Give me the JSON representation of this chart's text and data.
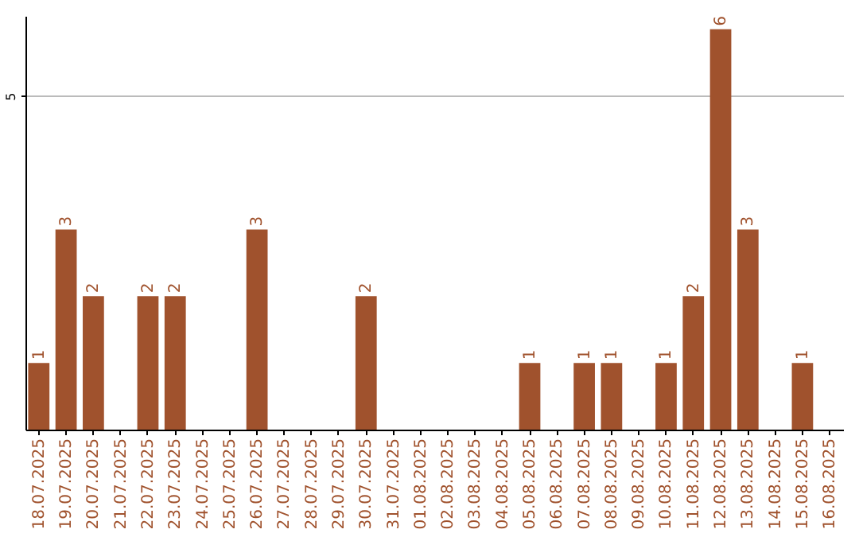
{
  "chart_data": {
    "type": "bar",
    "categories": [
      "18.07.2025",
      "19.07.2025",
      "20.07.2025",
      "21.07.2025",
      "22.07.2025",
      "23.07.2025",
      "24.07.2025",
      "25.07.2025",
      "26.07.2025",
      "27.07.2025",
      "28.07.2025",
      "29.07.2025",
      "30.07.2025",
      "31.07.2025",
      "01.08.2025",
      "02.08.2025",
      "03.08.2025",
      "04.08.2025",
      "05.08.2025",
      "06.08.2025",
      "07.08.2025",
      "08.08.2025",
      "09.08.2025",
      "10.08.2025",
      "11.08.2025",
      "12.08.2025",
      "13.08.2025",
      "14.08.2025",
      "15.08.2025",
      "16.08.2025"
    ],
    "values": [
      1,
      3,
      2,
      0,
      2,
      2,
      0,
      0,
      3,
      0,
      0,
      0,
      2,
      0,
      0,
      0,
      0,
      0,
      1,
      0,
      1,
      1,
      0,
      1,
      2,
      6,
      3,
      0,
      1,
      0
    ],
    "value_labels": [
      "1",
      "3",
      "2",
      null,
      "2",
      "2",
      null,
      null,
      "3",
      null,
      null,
      null,
      "2",
      null,
      null,
      null,
      null,
      null,
      "1",
      null,
      "1",
      "1",
      null,
      "1",
      "2",
      "6",
      "3",
      null,
      "1",
      null
    ],
    "color": "#a0522d",
    "ylim": [
      0,
      6.2
    ],
    "yticks": [
      5
    ],
    "grid": "y"
  }
}
